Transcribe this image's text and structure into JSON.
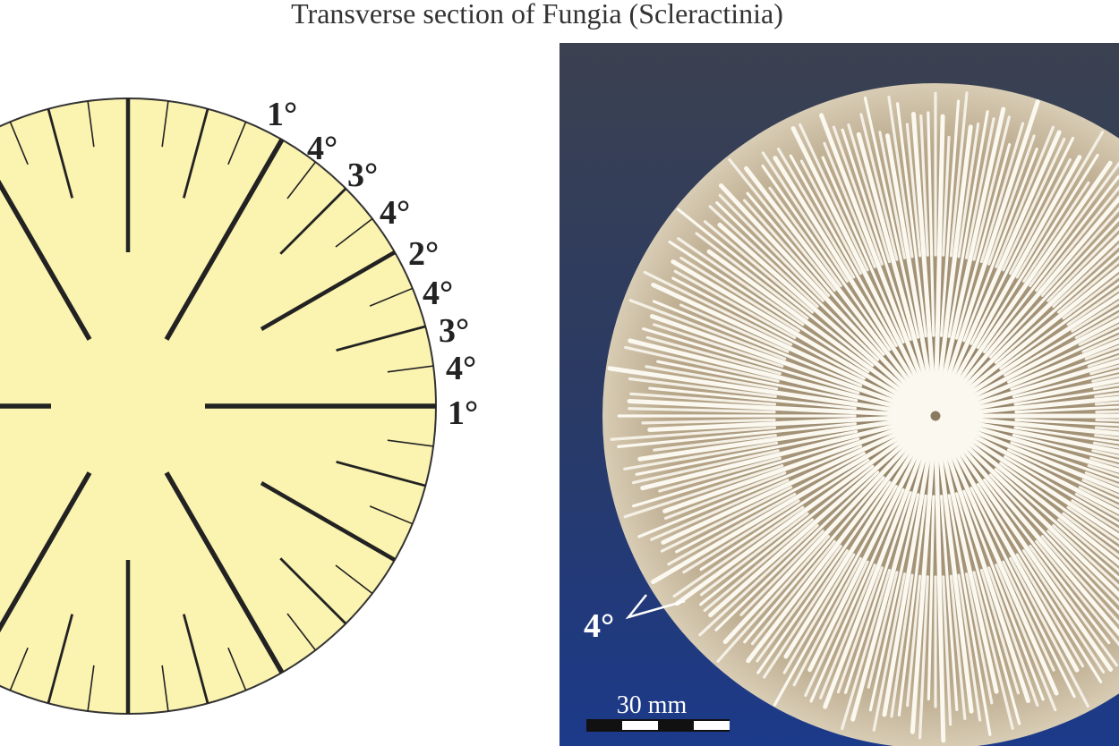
{
  "title": "Transverse section of Fungia (Scleractinia)",
  "diagram": {
    "septa_labels": [
      "1°",
      "4°",
      "3°",
      "4°",
      "2°",
      "4°",
      "3°",
      "4°",
      "1°"
    ]
  },
  "photo": {
    "label": "4°",
    "scale_bar": "30 mm"
  }
}
